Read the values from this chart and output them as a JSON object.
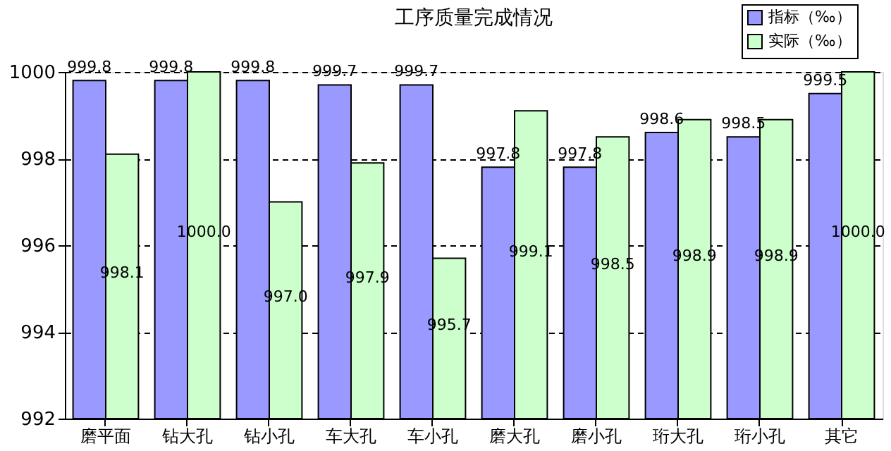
{
  "chart_data": {
    "type": "bar",
    "title": "工序质量完成情况",
    "categories": [
      "磨平面",
      "钻大孔",
      "钻小孔",
      "车大孔",
      "车小孔",
      "磨大孔",
      "磨小孔",
      "珩大孔",
      "珩小孔",
      "其它"
    ],
    "series": [
      {
        "name": "指标（‰）",
        "color": "#9999ff",
        "values": [
          999.8,
          999.8,
          999.8,
          999.7,
          999.7,
          997.8,
          997.8,
          998.6,
          998.5,
          999.5
        ],
        "value_labels": [
          "999.8",
          "999.8",
          "999.8",
          "999.7",
          "999.7",
          "997.8",
          "997.8",
          "998.6",
          "998.5",
          "999.5"
        ]
      },
      {
        "name": "实际（‰）",
        "color": "#ccffcc",
        "values": [
          998.1,
          1000.0,
          997.0,
          997.9,
          995.7,
          999.1,
          998.5,
          998.9,
          998.9,
          1000.0
        ],
        "value_labels": [
          "998.1",
          "1000.0",
          "997.0",
          "997.9",
          "995.7",
          "999.1",
          "998.5",
          "998.9",
          "998.9",
          "1000.0"
        ]
      }
    ],
    "ylim": [
      992,
      1000
    ],
    "yticks": [
      992,
      994,
      996,
      998,
      1000
    ],
    "grid": "y",
    "legend": "top right"
  }
}
